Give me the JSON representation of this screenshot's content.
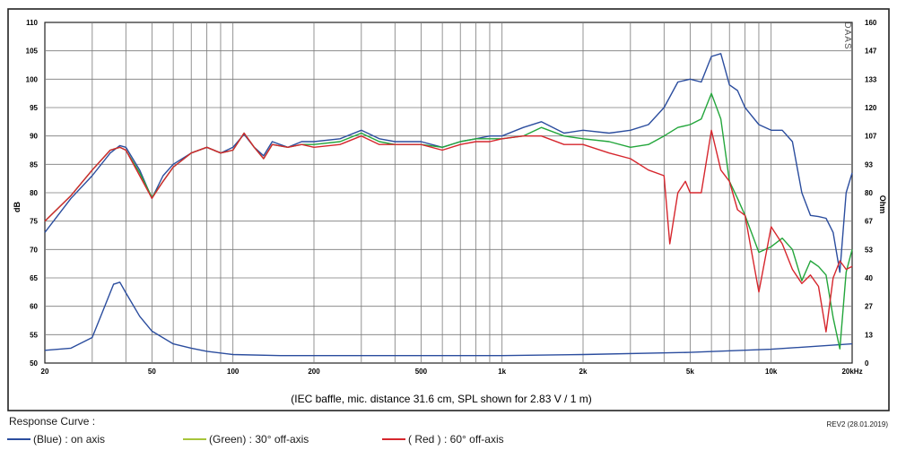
{
  "chart_data": {
    "type": "line",
    "xscale": "log",
    "xlim": [
      20,
      20000
    ],
    "ylim": [
      50,
      110
    ],
    "y2lim": [
      0,
      160
    ],
    "ylabel": "dB",
    "y2label": "Ohm",
    "x_ticks": [
      20,
      50,
      100,
      200,
      500,
      1000,
      2000,
      5000,
      10000,
      20000
    ],
    "x_tick_labels": [
      "20",
      "50",
      "100",
      "200",
      "500",
      "1k",
      "2k",
      "5k",
      "10k",
      "20kHz"
    ],
    "y_ticks": [
      110,
      105,
      100,
      95,
      90,
      85,
      80,
      75,
      70,
      65,
      60,
      55,
      50
    ],
    "y2_tick_labels": [
      "160",
      "147",
      "133",
      "120",
      "107",
      "93",
      "80",
      "67",
      "53",
      "40",
      "27",
      "13",
      "0"
    ],
    "caption": "(IEC baffle, mic. distance 31.6 cm, SPL shown for 2.83 V / 1 m)",
    "watermark": "DAAS",
    "grid": true,
    "series": [
      {
        "name": "(Blue) : on axis",
        "color": "#2b4d9e",
        "x": [
          20,
          25,
          30,
          35,
          38,
          40,
          45,
          50,
          55,
          60,
          70,
          80,
          90,
          100,
          110,
          120,
          130,
          140,
          160,
          180,
          200,
          250,
          300,
          350,
          400,
          500,
          600,
          700,
          800,
          900,
          1000,
          1200,
          1400,
          1700,
          2000,
          2500,
          3000,
          3500,
          4000,
          4500,
          5000,
          5500,
          6000,
          6500,
          7000,
          7500,
          8000,
          9000,
          10000,
          11000,
          12000,
          13000,
          14000,
          15000,
          16000,
          17000,
          18000,
          19000,
          20000
        ],
        "values": [
          73,
          79,
          83,
          87,
          88.3,
          88,
          84,
          79,
          83,
          85,
          87,
          88,
          87,
          88,
          90.3,
          88,
          86.5,
          89,
          88,
          89,
          89,
          89.5,
          91,
          89.5,
          89,
          89,
          88,
          89,
          89.5,
          90,
          90,
          91.5,
          92.5,
          90.5,
          91,
          90.5,
          91,
          92,
          95,
          99.5,
          100,
          99.5,
          104,
          104.5,
          99,
          98,
          95,
          92,
          91,
          91,
          89,
          80,
          76,
          75.8,
          75.5,
          73,
          66,
          80,
          83.5
        ]
      },
      {
        "name": "(Green) : 30° off-axis",
        "color": "#23a63b",
        "x": [
          20,
          25,
          30,
          35,
          38,
          40,
          45,
          50,
          55,
          60,
          70,
          80,
          90,
          100,
          110,
          120,
          130,
          140,
          160,
          180,
          200,
          250,
          300,
          350,
          400,
          500,
          600,
          700,
          800,
          900,
          1000,
          1200,
          1400,
          1700,
          2000,
          2500,
          3000,
          3500,
          4000,
          4500,
          5000,
          5500,
          6000,
          6500,
          7000,
          7500,
          8000,
          9000,
          10000,
          11000,
          12000,
          13000,
          14000,
          15000,
          16000,
          17000,
          18000,
          19000,
          20000
        ],
        "values": [
          75,
          79.5,
          84,
          87.5,
          88,
          87.5,
          83.5,
          79.2,
          82,
          84.5,
          87,
          88,
          87,
          87.5,
          90.5,
          88,
          86,
          88.5,
          88,
          88.5,
          88.5,
          89,
          90.5,
          89,
          88.5,
          88.5,
          88,
          89,
          89.5,
          89.5,
          89.5,
          90,
          91.5,
          90,
          89.5,
          89,
          88,
          88.5,
          90,
          91.5,
          92,
          93,
          97.5,
          93,
          82,
          79,
          76,
          69.5,
          70.5,
          72,
          70,
          64.5,
          68,
          67,
          65.5,
          58,
          52.5,
          66,
          70
        ]
      },
      {
        "name": "( Red ) : 60° off-axis",
        "color": "#d6262d",
        "x": [
          20,
          25,
          30,
          35,
          38,
          40,
          45,
          50,
          55,
          60,
          70,
          80,
          90,
          100,
          110,
          120,
          130,
          140,
          160,
          180,
          200,
          250,
          300,
          350,
          400,
          500,
          600,
          700,
          800,
          900,
          1000,
          1200,
          1400,
          1700,
          2000,
          2500,
          3000,
          3500,
          4000,
          4200,
          4500,
          4800,
          5000,
          5500,
          6000,
          6500,
          7000,
          7500,
          8000,
          9000,
          10000,
          11000,
          12000,
          13000,
          14000,
          15000,
          16000,
          17000,
          18000,
          19000,
          20000
        ],
        "values": [
          75,
          79.5,
          84,
          87.5,
          88,
          87.5,
          83,
          79,
          82,
          84.5,
          87,
          88,
          87,
          87.5,
          90.5,
          88,
          86,
          88.5,
          88,
          88.5,
          88,
          88.5,
          90,
          88.5,
          88.5,
          88.5,
          87.5,
          88.5,
          89,
          89,
          89.5,
          90,
          90,
          88.5,
          88.5,
          87,
          86,
          84,
          83,
          71,
          80,
          82,
          80,
          80,
          91,
          84,
          82,
          77,
          76,
          62.5,
          74,
          71,
          66.5,
          64,
          65.5,
          63.5,
          55.5,
          65,
          68,
          66.5,
          67
        ]
      },
      {
        "name": "Impedance",
        "axis": "right",
        "color": "#2b4d9e",
        "x": [
          20,
          25,
          30,
          33,
          36,
          38,
          40,
          45,
          50,
          60,
          70,
          80,
          100,
          150,
          200,
          500,
          1000,
          2000,
          5000,
          10000,
          20000
        ],
        "values": [
          6,
          7,
          12,
          25,
          37,
          38,
          33,
          22,
          15,
          9,
          7,
          5.5,
          4,
          3.5,
          3.5,
          3.5,
          3.5,
          4,
          5,
          6.5,
          9
        ]
      }
    ]
  },
  "legend": {
    "title": "Response Curve :",
    "items": [
      {
        "label": "(Blue)  : on axis",
        "color": "#2b4d9e"
      },
      {
        "label": "(Green) : 30° off-axis",
        "color": "#a7c43a"
      },
      {
        "label": "( Red ) : 60° off-axis",
        "color": "#d6262d"
      }
    ]
  },
  "revision": "REV2 (28.01.2019)"
}
